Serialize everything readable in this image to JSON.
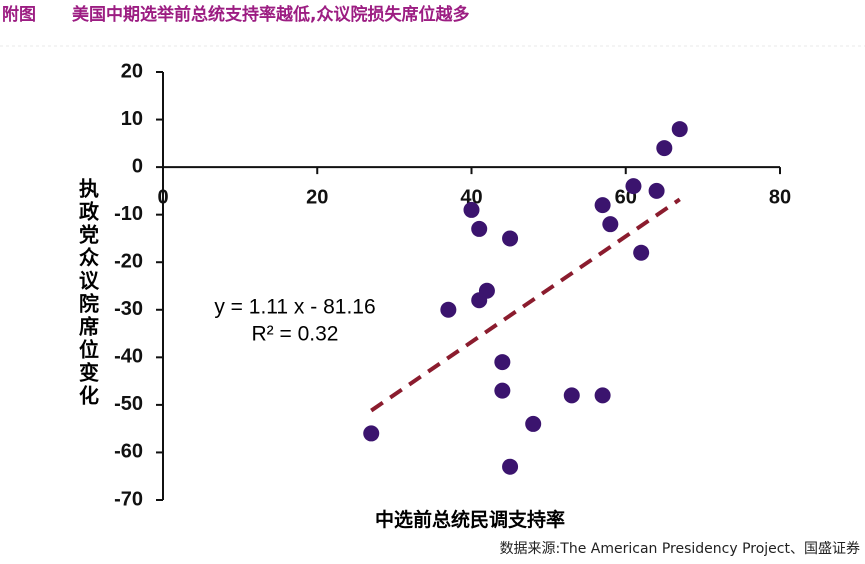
{
  "chart_data": {
    "type": "scatter",
    "figure_label": "附图",
    "title": "美国中期选举前总统支持率越低,众议院损失席位越多",
    "x_label": "中选前总统民调支持率",
    "y_label": "执政党众议院席位变化",
    "source": "数据来源:The American Presidency Project、国盛证券",
    "color": "#3b146e",
    "x": [
      67,
      65,
      61,
      64,
      57,
      58,
      62,
      40,
      41,
      45,
      42,
      41,
      37,
      44,
      44,
      53,
      57,
      48,
      45,
      27
    ],
    "values": [
      8,
      4,
      -4,
      -5,
      -8,
      -12,
      -18,
      -9,
      -13,
      -15,
      -26,
      -28,
      -30,
      -41,
      -47,
      -48,
      -48,
      -54,
      -63,
      -56
    ],
    "xlim": [
      0,
      80
    ],
    "xticks": [
      0,
      20,
      40,
      60,
      80
    ],
    "ylim": [
      -70,
      20
    ],
    "yticks": [
      -70,
      -60,
      -50,
      -40,
      -30,
      -20,
      -10,
      0,
      10,
      20
    ],
    "trendline": {
      "slope": 1.11,
      "intercept": -81.16,
      "color": "#8b1c2e",
      "equation": "y = 1.11 x - 81.16",
      "r2": 0.32,
      "r2_label": "R² = 0.32"
    }
  }
}
